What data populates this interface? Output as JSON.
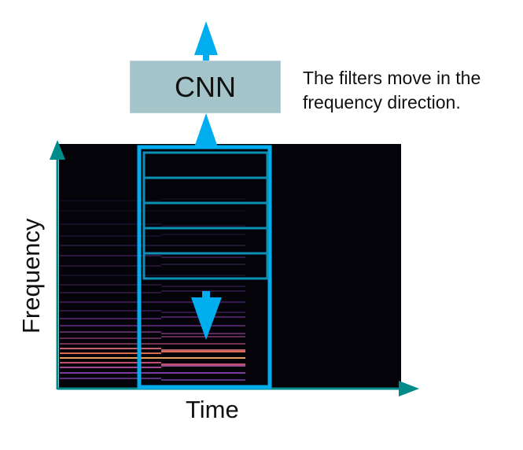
{
  "diagram": {
    "cnn_label": "CNN",
    "caption_lines": [
      "The filters move in the",
      "frequency direction."
    ],
    "x_axis_label": "Time",
    "y_axis_label": "Frequency",
    "filter_window_rows": 5
  },
  "colors": {
    "filter_blue": "#00aeef",
    "axis_teal": "#008b8b",
    "cnn_box": "#a3c4c9",
    "spectrogram_bg": "#04030a",
    "window_line": "#0e8fb5"
  }
}
